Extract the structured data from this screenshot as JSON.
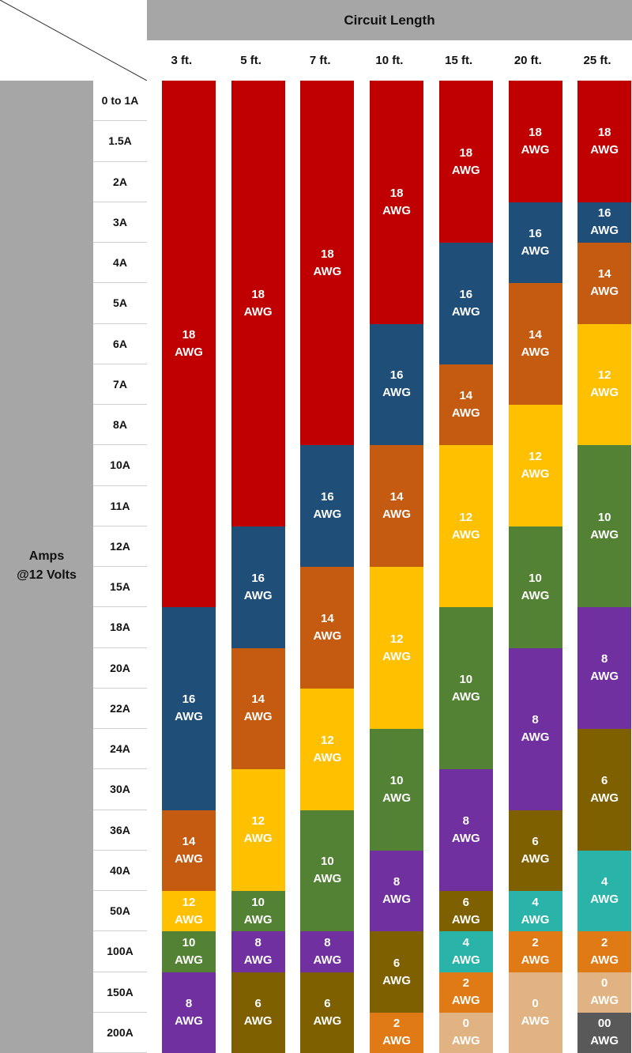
{
  "chart_data": {
    "type": "table",
    "title": "Circuit Length",
    "ylabel_line1": "Amps",
    "ylabel_line2": "@12 Volts",
    "unit": "AWG",
    "columns": [
      "3 ft.",
      "5 ft.",
      "7 ft.",
      "10 ft.",
      "15 ft.",
      "20 ft.",
      "25 ft."
    ],
    "rows": [
      "0 to 1A",
      "1.5A",
      "2A",
      "3A",
      "4A",
      "5A",
      "6A",
      "7A",
      "8A",
      "10A",
      "11A",
      "12A",
      "15A",
      "18A",
      "20A",
      "22A",
      "24A",
      "30A",
      "36A",
      "40A",
      "50A",
      "100A",
      "150A",
      "200A"
    ],
    "gauge_colors": {
      "18": "#c00000",
      "16": "#1f4e79",
      "14": "#c55a11",
      "12": "#ffc000",
      "10": "#548235",
      "8": "#7030a0",
      "6": "#7f6000",
      "4": "#2ab4a9",
      "2": "#e07a14",
      "0": "#e2b382",
      "00": "#595959"
    },
    "series": [
      {
        "name": "3 ft.",
        "values": [
          "18",
          "18",
          "18",
          "18",
          "18",
          "18",
          "18",
          "18",
          "18",
          "18",
          "18",
          "18",
          "18",
          "16",
          "16",
          "16",
          "16",
          "16",
          "14",
          "14",
          "12",
          "10",
          "8",
          "8"
        ]
      },
      {
        "name": "5 ft.",
        "values": [
          "18",
          "18",
          "18",
          "18",
          "18",
          "18",
          "18",
          "18",
          "18",
          "18",
          "18",
          "16",
          "16",
          "16",
          "14",
          "14",
          "14",
          "12",
          "12",
          "12",
          "10",
          "8",
          "6",
          "6"
        ]
      },
      {
        "name": "7 ft.",
        "values": [
          "18",
          "18",
          "18",
          "18",
          "18",
          "18",
          "18",
          "18",
          "18",
          "16",
          "16",
          "16",
          "14",
          "14",
          "14",
          "12",
          "12",
          "12",
          "10",
          "10",
          "10",
          "8",
          "6",
          "6"
        ]
      },
      {
        "name": "10 ft.",
        "values": [
          "18",
          "18",
          "18",
          "18",
          "18",
          "18",
          "16",
          "16",
          "16",
          "14",
          "14",
          "14",
          "12",
          "12",
          "12",
          "12",
          "10",
          "10",
          "10",
          "8",
          "8",
          "6",
          "6",
          "2"
        ]
      },
      {
        "name": "15 ft.",
        "values": [
          "18",
          "18",
          "18",
          "18",
          "16",
          "16",
          "16",
          "14",
          "14",
          "12",
          "12",
          "12",
          "12",
          "10",
          "10",
          "10",
          "10",
          "8",
          "8",
          "8",
          "6",
          "4",
          "2",
          "0"
        ]
      },
      {
        "name": "20 ft.",
        "values": [
          "18",
          "18",
          "18",
          "16",
          "16",
          "14",
          "14",
          "14",
          "12",
          "12",
          "12",
          "10",
          "10",
          "10",
          "8",
          "8",
          "8",
          "8",
          "6",
          "6",
          "4",
          "2",
          "0",
          "0"
        ]
      },
      {
        "name": "25 ft.",
        "values": [
          "18",
          "18",
          "18",
          "16",
          "14",
          "14",
          "12",
          "12",
          "12",
          "10",
          "10",
          "10",
          "10",
          "8",
          "8",
          "8",
          "6",
          "6",
          "6",
          "4",
          "4",
          "2",
          "0",
          "00"
        ]
      }
    ]
  }
}
